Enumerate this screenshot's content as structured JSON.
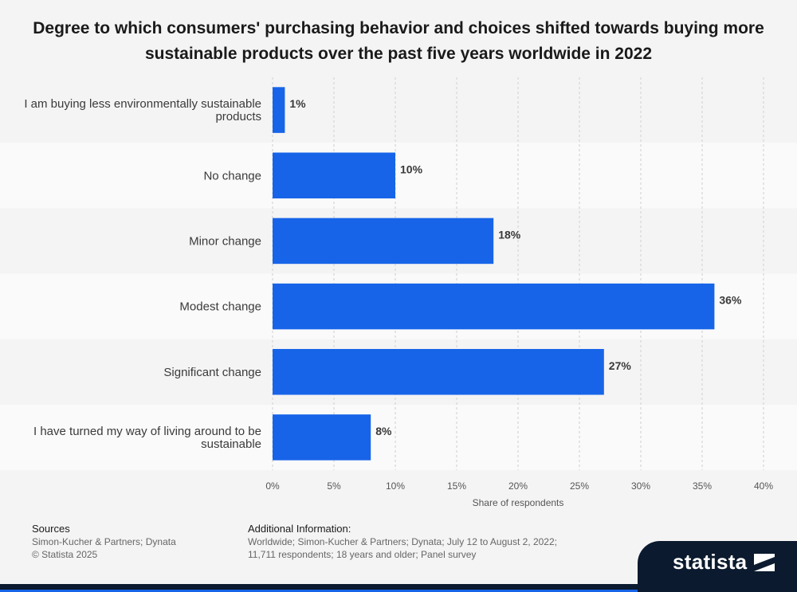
{
  "chart_data": {
    "type": "bar",
    "orientation": "horizontal",
    "title": "Degree to which consumers' purchasing behavior and choices shifted towards buying more sustainable products over the past five years worldwide in 2022",
    "categories": [
      [
        "I am buying less environmentally sustainable",
        "products"
      ],
      [
        "No change"
      ],
      [
        "Minor change"
      ],
      [
        "Modest change"
      ],
      [
        "Significant change"
      ],
      [
        "I have turned my way of living around to be",
        "sustainable"
      ]
    ],
    "values": [
      1,
      10,
      18,
      36,
      27,
      8
    ],
    "value_labels": [
      "1%",
      "10%",
      "18%",
      "36%",
      "27%",
      "8%"
    ],
    "xlabel": "Share of respondents",
    "ylabel": "",
    "xlim": [
      0,
      40
    ],
    "ticks": [
      0,
      5,
      10,
      15,
      20,
      25,
      30,
      35,
      40
    ],
    "tick_labels": [
      "0%",
      "5%",
      "10%",
      "15%",
      "20%",
      "25%",
      "30%",
      "35%",
      "40%"
    ],
    "bar_color": "#1764e8",
    "grid": true,
    "grid_style": "dashed vertical"
  },
  "footer": {
    "sources_heading": "Sources",
    "sources_line1": "Simon-Kucher & Partners; Dynata",
    "sources_line2": "© Statista 2025",
    "info_heading": "Additional Information:",
    "info_line1": "Worldwide; Simon-Kucher & Partners; Dynata; July 12 to August 2, 2022;",
    "info_line2": "11,711 respondents; 18 years and older; Panel survey"
  },
  "brand": {
    "name": "statista",
    "color": "#0b1a2e"
  }
}
